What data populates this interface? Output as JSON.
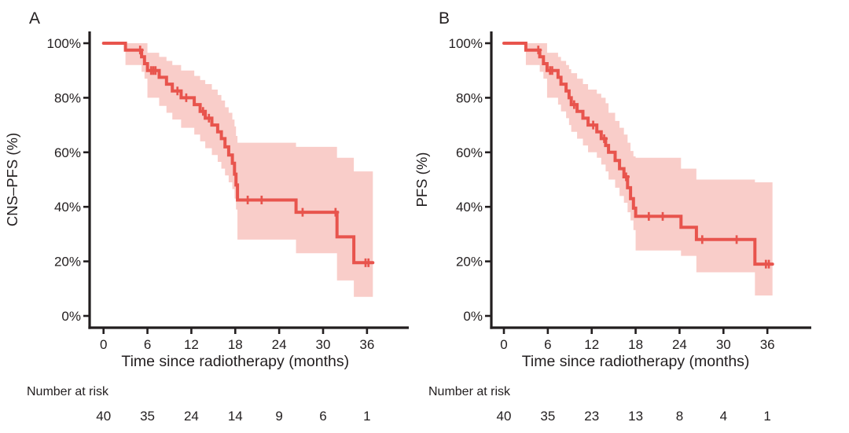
{
  "figure": {
    "description": "Two-panel Kaplan-Meier survival figure",
    "panel_letters": [
      "A",
      "B"
    ],
    "colors": {
      "curve": "#e8544d",
      "ci_band": "#f9cdc9",
      "axis": "#221e1f",
      "text": "#221e1f",
      "background": "#ffffff"
    }
  },
  "chart_data": [
    {
      "type": "line",
      "km_style": "step-with-censor-marks",
      "panel_label": "A",
      "title": "",
      "xlabel": "Time since radiotherapy (months)",
      "ylabel": "CNS–PFS (%)",
      "xlim": [
        0,
        41.5
      ],
      "ylim": [
        0,
        100
      ],
      "grid": false,
      "legend": "none",
      "x_tick_values": [
        0,
        6,
        12,
        18,
        24,
        30,
        36
      ],
      "y_tick_values": [
        0,
        20,
        40,
        60,
        80,
        100
      ],
      "y_tick_labels": [
        "0%",
        "20%",
        "40%",
        "60%",
        "80%",
        "100%"
      ],
      "series": [
        {
          "name": "CNS-PFS",
          "end_time": 36.8,
          "steps": [
            [
              0,
              100
            ],
            [
              3.0,
              97.5
            ],
            [
              5.2,
              95
            ],
            [
              5.6,
              92.5
            ],
            [
              6.0,
              90
            ],
            [
              7.6,
              87.5
            ],
            [
              8.6,
              85
            ],
            [
              9.4,
              82.5
            ],
            [
              10.6,
              80
            ],
            [
              12.4,
              77.5
            ],
            [
              13.2,
              75
            ],
            [
              13.9,
              72.5
            ],
            [
              14.8,
              70
            ],
            [
              15.6,
              67.5
            ],
            [
              16.1,
              65
            ],
            [
              16.6,
              62
            ],
            [
              17.1,
              59
            ],
            [
              17.6,
              56
            ],
            [
              17.9,
              52
            ],
            [
              18.1,
              48
            ],
            [
              18.3,
              42.5
            ],
            [
              26.3,
              38
            ],
            [
              31.9,
              29
            ],
            [
              34.2,
              19.5
            ]
          ],
          "censor_times": [
            [
              5.0,
              97.5
            ],
            [
              6.5,
              90
            ],
            [
              6.8,
              90
            ],
            [
              7.1,
              90
            ],
            [
              10.1,
              82.5
            ],
            [
              11.3,
              80
            ],
            [
              13.6,
              75
            ],
            [
              14.4,
              72.5
            ],
            [
              19.7,
              42.5
            ],
            [
              21.6,
              42.5
            ],
            [
              27.2,
              38
            ],
            [
              31.7,
              38
            ],
            [
              35.8,
              19.5
            ],
            [
              36.2,
              19.5
            ]
          ]
        }
      ],
      "ci_band": [
        [
          3.0,
          92,
          100
        ],
        [
          5.2,
          89.5,
          100
        ],
        [
          5.6,
          87,
          100
        ],
        [
          6.0,
          80,
          96.5
        ],
        [
          7.6,
          77,
          95
        ],
        [
          8.6,
          74.5,
          93.5
        ],
        [
          9.4,
          72,
          92
        ],
        [
          10.6,
          69,
          90
        ],
        [
          12.4,
          66.5,
          88
        ],
        [
          13.2,
          64,
          86.5
        ],
        [
          13.9,
          61.5,
          85
        ],
        [
          14.8,
          59,
          83
        ],
        [
          15.6,
          56.5,
          81
        ],
        [
          16.1,
          54,
          79
        ],
        [
          16.6,
          51.5,
          76.5
        ],
        [
          17.1,
          49,
          74.5
        ],
        [
          17.6,
          46.5,
          72
        ],
        [
          17.9,
          43,
          69.5
        ],
        [
          18.1,
          39,
          66
        ],
        [
          18.3,
          28,
          63.5
        ],
        [
          26.3,
          23,
          62
        ],
        [
          31.9,
          13,
          58
        ],
        [
          34.2,
          7,
          53
        ]
      ],
      "number_at_risk": {
        "label": "Number at risk",
        "times": [
          0,
          6,
          12,
          18,
          24,
          30,
          36
        ],
        "values": [
          40,
          35,
          24,
          14,
          9,
          6,
          1
        ]
      }
    },
    {
      "type": "line",
      "km_style": "step-with-censor-marks",
      "panel_label": "B",
      "title": "",
      "xlabel": "Time since radiotherapy (months)",
      "ylabel": "PFS (%)",
      "xlim": [
        0,
        41.5
      ],
      "ylim": [
        0,
        100
      ],
      "grid": false,
      "legend": "none",
      "x_tick_values": [
        0,
        6,
        12,
        18,
        24,
        30,
        36
      ],
      "y_tick_values": [
        0,
        20,
        40,
        60,
        80,
        100
      ],
      "y_tick_labels": [
        "0%",
        "20%",
        "40%",
        "60%",
        "80%",
        "100%"
      ],
      "series": [
        {
          "name": "PFS",
          "end_time": 36.7,
          "steps": [
            [
              0,
              100
            ],
            [
              3.0,
              97.5
            ],
            [
              4.9,
              95
            ],
            [
              5.4,
              92.5
            ],
            [
              5.9,
              90
            ],
            [
              7.4,
              87.5
            ],
            [
              7.8,
              85
            ],
            [
              8.5,
              82.5
            ],
            [
              8.9,
              80
            ],
            [
              9.2,
              77.5
            ],
            [
              10.0,
              75
            ],
            [
              10.8,
              72.5
            ],
            [
              11.5,
              70
            ],
            [
              12.7,
              67.5
            ],
            [
              13.3,
              65
            ],
            [
              13.9,
              62.5
            ],
            [
              14.3,
              60
            ],
            [
              15.2,
              57
            ],
            [
              15.8,
              54
            ],
            [
              16.4,
              51
            ],
            [
              16.9,
              47
            ],
            [
              17.3,
              43
            ],
            [
              17.7,
              39.5
            ],
            [
              18.0,
              36.5
            ],
            [
              24.2,
              32.5
            ],
            [
              26.3,
              28
            ],
            [
              34.3,
              19
            ]
          ],
          "censor_times": [
            [
              4.7,
              97.5
            ],
            [
              6.3,
              90
            ],
            [
              6.6,
              90
            ],
            [
              9.6,
              77.5
            ],
            [
              12.2,
              70
            ],
            [
              13.7,
              65
            ],
            [
              16.7,
              51
            ],
            [
              19.8,
              36.5
            ],
            [
              21.7,
              36.5
            ],
            [
              27.1,
              28
            ],
            [
              31.8,
              28
            ],
            [
              35.8,
              19
            ],
            [
              36.2,
              19
            ]
          ]
        }
      ],
      "ci_band": [
        [
          3.0,
          92,
          100
        ],
        [
          4.9,
          89.5,
          100
        ],
        [
          5.4,
          87,
          100
        ],
        [
          5.9,
          80,
          96.5
        ],
        [
          7.4,
          77.5,
          95
        ],
        [
          7.8,
          75,
          93.5
        ],
        [
          8.5,
          72.5,
          92
        ],
        [
          8.9,
          70,
          90.5
        ],
        [
          9.2,
          67.5,
          89
        ],
        [
          10.0,
          65,
          87
        ],
        [
          10.8,
          62.5,
          85
        ],
        [
          11.5,
          60,
          83
        ],
        [
          12.7,
          58,
          81.5
        ],
        [
          13.3,
          55.5,
          80
        ],
        [
          13.9,
          53,
          78
        ],
        [
          14.3,
          50,
          74.5
        ],
        [
          15.2,
          47,
          71.5
        ],
        [
          15.8,
          44,
          69
        ],
        [
          16.4,
          41.5,
          66.5
        ],
        [
          16.9,
          38,
          63.5
        ],
        [
          17.3,
          35,
          60.5
        ],
        [
          17.7,
          31.5,
          58.5
        ],
        [
          18.0,
          24,
          58
        ],
        [
          24.2,
          22,
          54
        ],
        [
          26.3,
          16,
          50
        ],
        [
          34.3,
          7.5,
          49
        ]
      ],
      "number_at_risk": {
        "label": "Number at risk",
        "times": [
          0,
          6,
          12,
          18,
          24,
          30,
          36
        ],
        "values": [
          40,
          35,
          23,
          13,
          8,
          4,
          1
        ]
      }
    }
  ]
}
